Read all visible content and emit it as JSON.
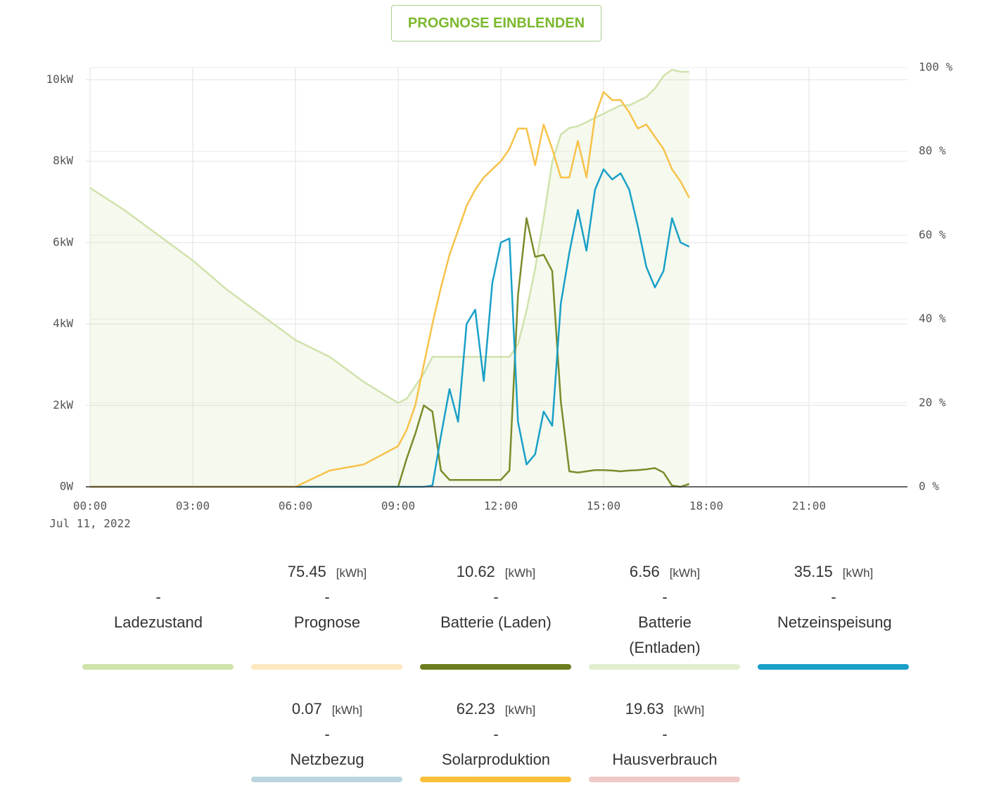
{
  "button": {
    "label": "PROGNOSE EINBLENDEN"
  },
  "chart_data": {
    "type": "line",
    "date": "Jul 11, 2022",
    "xlim": [
      0,
      24
    ],
    "xticks": [
      {
        "value": 0,
        "label": "00:00"
      },
      {
        "value": 3,
        "label": "03:00"
      },
      {
        "value": 6,
        "label": "06:00"
      },
      {
        "value": 9,
        "label": "09:00"
      },
      {
        "value": 12,
        "label": "12:00"
      },
      {
        "value": 15,
        "label": "15:00"
      },
      {
        "value": 18,
        "label": "18:00"
      },
      {
        "value": 21,
        "label": "21:00"
      }
    ],
    "ylim": [
      0,
      10.3
    ],
    "yticks": [
      {
        "value": 0,
        "label": "0W"
      },
      {
        "value": 2,
        "label": "2kW"
      },
      {
        "value": 4,
        "label": "4kW"
      },
      {
        "value": 6,
        "label": "6kW"
      },
      {
        "value": 8,
        "label": "8kW"
      },
      {
        "value": 10,
        "label": "10kW"
      }
    ],
    "y2lim": [
      0,
      100
    ],
    "y2ticks": [
      {
        "value": 0,
        "label": "0 %"
      },
      {
        "value": 20,
        "label": "20 %"
      },
      {
        "value": 40,
        "label": "40 %"
      },
      {
        "value": 60,
        "label": "60 %"
      },
      {
        "value": 80,
        "label": "80 %"
      },
      {
        "value": 100,
        "label": "100 %"
      }
    ],
    "grid": true,
    "x": [
      0,
      1,
      2,
      3,
      4,
      5,
      6,
      7,
      8,
      9,
      9.25,
      9.5,
      9.75,
      10,
      10.25,
      10.5,
      10.75,
      11,
      11.25,
      11.5,
      11.75,
      12,
      12.25,
      12.5,
      12.75,
      13,
      13.25,
      13.5,
      13.75,
      14,
      14.25,
      14.5,
      14.75,
      15,
      15.25,
      15.5,
      15.75,
      16,
      16.25,
      16.5,
      16.75,
      17,
      17.25,
      17.5
    ],
    "series": [
      {
        "name": "Ladezustand",
        "color": "#cfe3ab",
        "area": true,
        "axis": "y2",
        "separator": "-",
        "values": [
          71.3,
          66,
          60,
          54,
          47,
          41,
          35,
          31,
          25,
          20,
          21,
          24,
          27,
          31,
          31,
          31,
          31,
          31,
          31,
          31,
          31,
          31,
          31,
          34,
          42,
          52,
          64,
          77.5,
          84,
          85.6,
          86,
          87,
          88,
          89,
          90,
          91,
          91,
          92,
          93,
          95,
          98,
          99.5,
          99,
          99
        ]
      },
      {
        "name": "Prognose",
        "color": "#fde9c0",
        "total": 75.45,
        "unit": "[kWh]",
        "separator": "-"
      },
      {
        "name": "Batterie (Laden)",
        "color": "#6b7d1e",
        "total": 10.62,
        "unit": "[kWh]",
        "separator": "-",
        "values": [
          0,
          0,
          0,
          0,
          0,
          0,
          0,
          0,
          0,
          0,
          0.7,
          1.3,
          2.0,
          1.85,
          0.4,
          0.17,
          0.17,
          0.17,
          0.17,
          0.17,
          0.17,
          0.17,
          0.4,
          4.7,
          6.6,
          5.65,
          5.7,
          5.3,
          2.1,
          0.38,
          0.35,
          0.38,
          0.41,
          0.41,
          0.4,
          0.38,
          0.4,
          0.41,
          0.43,
          0.46,
          0.35,
          0.03,
          0,
          0.07
        ]
      },
      {
        "name": "Batterie (Entladen)",
        "color": "#e2eed0",
        "total": 6.56,
        "unit": "[kWh]",
        "separator": "-"
      },
      {
        "name": "Netzeinspeisung",
        "color": "#1aa0c8",
        "total": 35.15,
        "unit": "[kWh]",
        "separator": "-",
        "values": [
          0,
          0,
          0,
          0,
          0,
          0,
          0,
          0,
          0,
          0,
          0,
          0,
          0,
          0.03,
          1.25,
          2.4,
          1.6,
          4.0,
          4.35,
          2.6,
          5.0,
          6.0,
          6.1,
          1.6,
          0.55,
          0.8,
          1.85,
          1.5,
          4.5,
          5.75,
          6.8,
          5.8,
          7.3,
          7.8,
          7.55,
          7.7,
          7.3,
          6.4,
          5.4,
          4.9,
          5.3,
          6.6,
          6.0,
          5.9
        ]
      },
      {
        "name": "Netzbezug",
        "color": "#bcd5de",
        "total": 0.07,
        "unit": "[kWh]",
        "separator": "-"
      },
      {
        "name": "Solarproduktion",
        "color": "#fbbf3c",
        "total": 62.23,
        "unit": "[kWh]",
        "separator": "-",
        "values": [
          0,
          0,
          0,
          0,
          0,
          0,
          0,
          0.4,
          0.55,
          1.0,
          1.4,
          2.0,
          3.0,
          4.0,
          4.9,
          5.7,
          6.3,
          6.9,
          7.3,
          7.6,
          7.8,
          8.0,
          8.3,
          8.8,
          8.8,
          7.9,
          8.9,
          8.3,
          7.6,
          7.6,
          8.5,
          7.6,
          9.1,
          9.7,
          9.5,
          9.5,
          9.2,
          8.8,
          8.9,
          8.6,
          8.3,
          7.8,
          7.5,
          7.1
        ]
      },
      {
        "name": "Hausverbrauch",
        "color": "#f0c8c8",
        "total": 19.63,
        "unit": "[kWh]",
        "separator": "-"
      }
    ]
  }
}
